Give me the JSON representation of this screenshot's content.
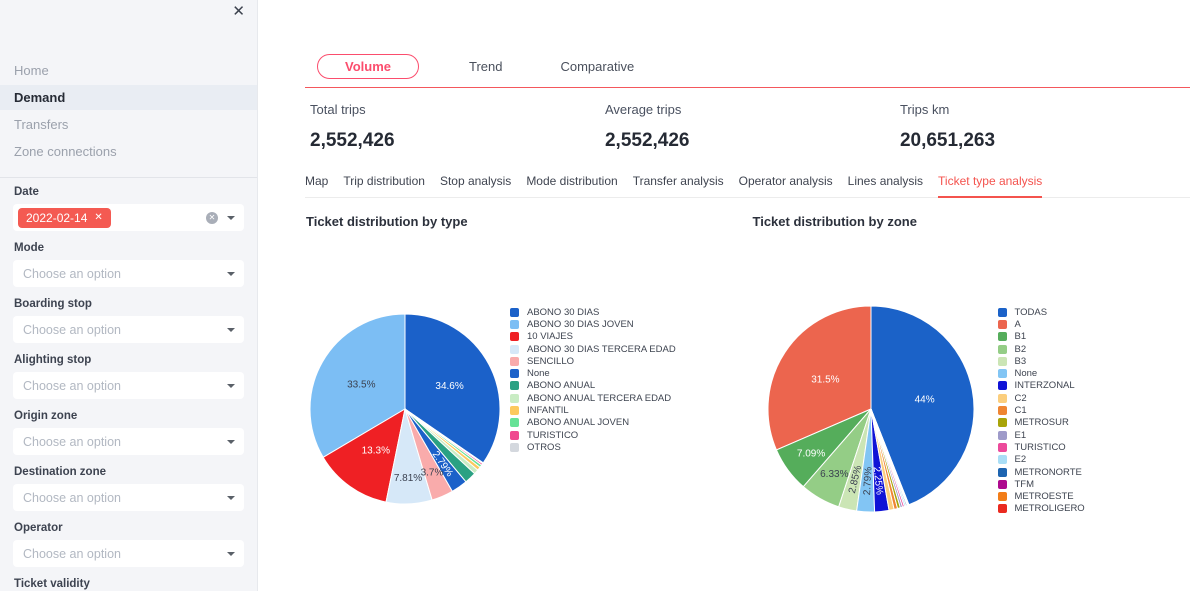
{
  "colors": {
    "pink": "#fb4d6d",
    "line_red": "#f4575c",
    "accent_red": "#f4534e",
    "chip_red": "#f45a52"
  },
  "sidebar": {
    "close_icon": "✕",
    "nav": [
      {
        "label": "Home",
        "active": false
      },
      {
        "label": "Demand",
        "active": true
      },
      {
        "label": "Transfers",
        "active": false
      },
      {
        "label": "Zone connections",
        "active": false
      }
    ],
    "filters": [
      {
        "label": "Date",
        "type": "tags",
        "tags": [
          "2022-02-14"
        ],
        "tag_remove_icon": "✕"
      },
      {
        "label": "Mode",
        "type": "select",
        "placeholder": "Choose an option"
      },
      {
        "label": "Boarding stop",
        "type": "select",
        "placeholder": "Choose an option"
      },
      {
        "label": "Alighting stop",
        "type": "select",
        "placeholder": "Choose an option"
      },
      {
        "label": "Origin zone",
        "type": "select",
        "placeholder": "Choose an option"
      },
      {
        "label": "Destination zone",
        "type": "select",
        "placeholder": "Choose an option"
      },
      {
        "label": "Operator",
        "type": "select",
        "placeholder": "Choose an option"
      },
      {
        "label": "Ticket validity",
        "type": "label-only"
      }
    ]
  },
  "main": {
    "tabs": [
      {
        "label": "Volume",
        "active": true
      },
      {
        "label": "Trend",
        "active": false
      },
      {
        "label": "Comparative",
        "active": false
      }
    ],
    "stats": [
      {
        "label": "Total trips",
        "value": "2,552,426"
      },
      {
        "label": "Average trips",
        "value": "2,552,426"
      },
      {
        "label": "Trips km",
        "value": "20,651,263"
      }
    ],
    "subtabs": [
      {
        "label": "Map",
        "active": false
      },
      {
        "label": "Trip distribution",
        "active": false
      },
      {
        "label": "Stop analysis",
        "active": false
      },
      {
        "label": "Mode distribution",
        "active": false
      },
      {
        "label": "Transfer analysis",
        "active": false
      },
      {
        "label": "Operator analysis",
        "active": false
      },
      {
        "label": "Lines analysis",
        "active": false
      },
      {
        "label": "Ticket type analysis",
        "active": true
      }
    ]
  },
  "chart_data": [
    {
      "type": "pie",
      "title": "Ticket distribution by type",
      "legend_position": "right",
      "slices": [
        {
          "label": "ABONO 30 DIAS",
          "value": 34.6,
          "display": "34.6%",
          "color": "#1b61c9"
        },
        {
          "label": "ABONO 30 DIAS JOVEN",
          "value": 33.5,
          "display": "33.5%",
          "color": "#7cbef4"
        },
        {
          "label": "10 VIAJES",
          "value": 13.3,
          "display": "13.3%",
          "color": "#ef2024"
        },
        {
          "label": "ABONO 30 DIAS TERCERA EDAD",
          "value": 7.81,
          "display": "7.81%",
          "color": "#d6e8f8"
        },
        {
          "label": "SENCILLO",
          "value": 3.7,
          "display": "3.7%",
          "color": "#f9abab"
        },
        {
          "label": "None",
          "value": 2.79,
          "display": "2.79%",
          "color": "#1b61c9"
        },
        {
          "label": "ABONO ANUAL",
          "value": 2.0,
          "display": "",
          "color": "#2aa183"
        },
        {
          "label": "ABONO ANUAL TERCERA EDAD",
          "value": 0.8,
          "display": "",
          "color": "#c9ecc4"
        },
        {
          "label": "INFANTIL",
          "value": 0.6,
          "display": "",
          "color": "#fcc95f"
        },
        {
          "label": "ABONO ANUAL JOVEN",
          "value": 0.45,
          "display": "",
          "color": "#66e296"
        },
        {
          "label": "TURISTICO",
          "value": 0.3,
          "display": "",
          "color": "#f0498f"
        },
        {
          "label": "OTROS",
          "value": 0.15,
          "display": "",
          "color": "#d4d8de"
        }
      ]
    },
    {
      "type": "pie",
      "title": "Ticket distribution by zone",
      "legend_position": "right",
      "slices": [
        {
          "label": "TODAS",
          "value": 44.0,
          "display": "44%",
          "color": "#1b62c8"
        },
        {
          "label": "A",
          "value": 31.5,
          "display": "31.5%",
          "color": "#ec654e"
        },
        {
          "label": "B1",
          "value": 7.09,
          "display": "7.09%",
          "color": "#55ad5b"
        },
        {
          "label": "B2",
          "value": 6.33,
          "display": "6.33%",
          "color": "#94cd86"
        },
        {
          "label": "B3",
          "value": 2.85,
          "display": "2.85%",
          "color": "#cbe5b5"
        },
        {
          "label": "None",
          "value": 2.79,
          "display": "2.79%",
          "color": "#82c5f4"
        },
        {
          "label": "INTERZONAL",
          "value": 2.25,
          "display": "2.25%",
          "color": "#1013d6"
        },
        {
          "label": "C2",
          "value": 0.8,
          "display": "",
          "color": "#fbce7d"
        },
        {
          "label": "C1",
          "value": 0.55,
          "display": "",
          "color": "#ef8532"
        },
        {
          "label": "METROSUR",
          "value": 0.45,
          "display": "",
          "color": "#a8a409"
        },
        {
          "label": "E1",
          "value": 0.35,
          "display": "",
          "color": "#9e9ac9"
        },
        {
          "label": "TURISTICO",
          "value": 0.3,
          "display": "",
          "color": "#ec4a9b"
        },
        {
          "label": "E2",
          "value": 0.25,
          "display": "",
          "color": "#a9def6"
        },
        {
          "label": "METRONORTE",
          "value": 0.2,
          "display": "",
          "color": "#1d64b0"
        },
        {
          "label": "TFM",
          "value": 0.15,
          "display": "",
          "color": "#ae0a8e"
        },
        {
          "label": "METROESTE",
          "value": 0.1,
          "display": "",
          "color": "#f27d18"
        },
        {
          "label": "METROLIGERO",
          "value": 0.04,
          "display": "",
          "color": "#ea2a20"
        }
      ]
    }
  ]
}
